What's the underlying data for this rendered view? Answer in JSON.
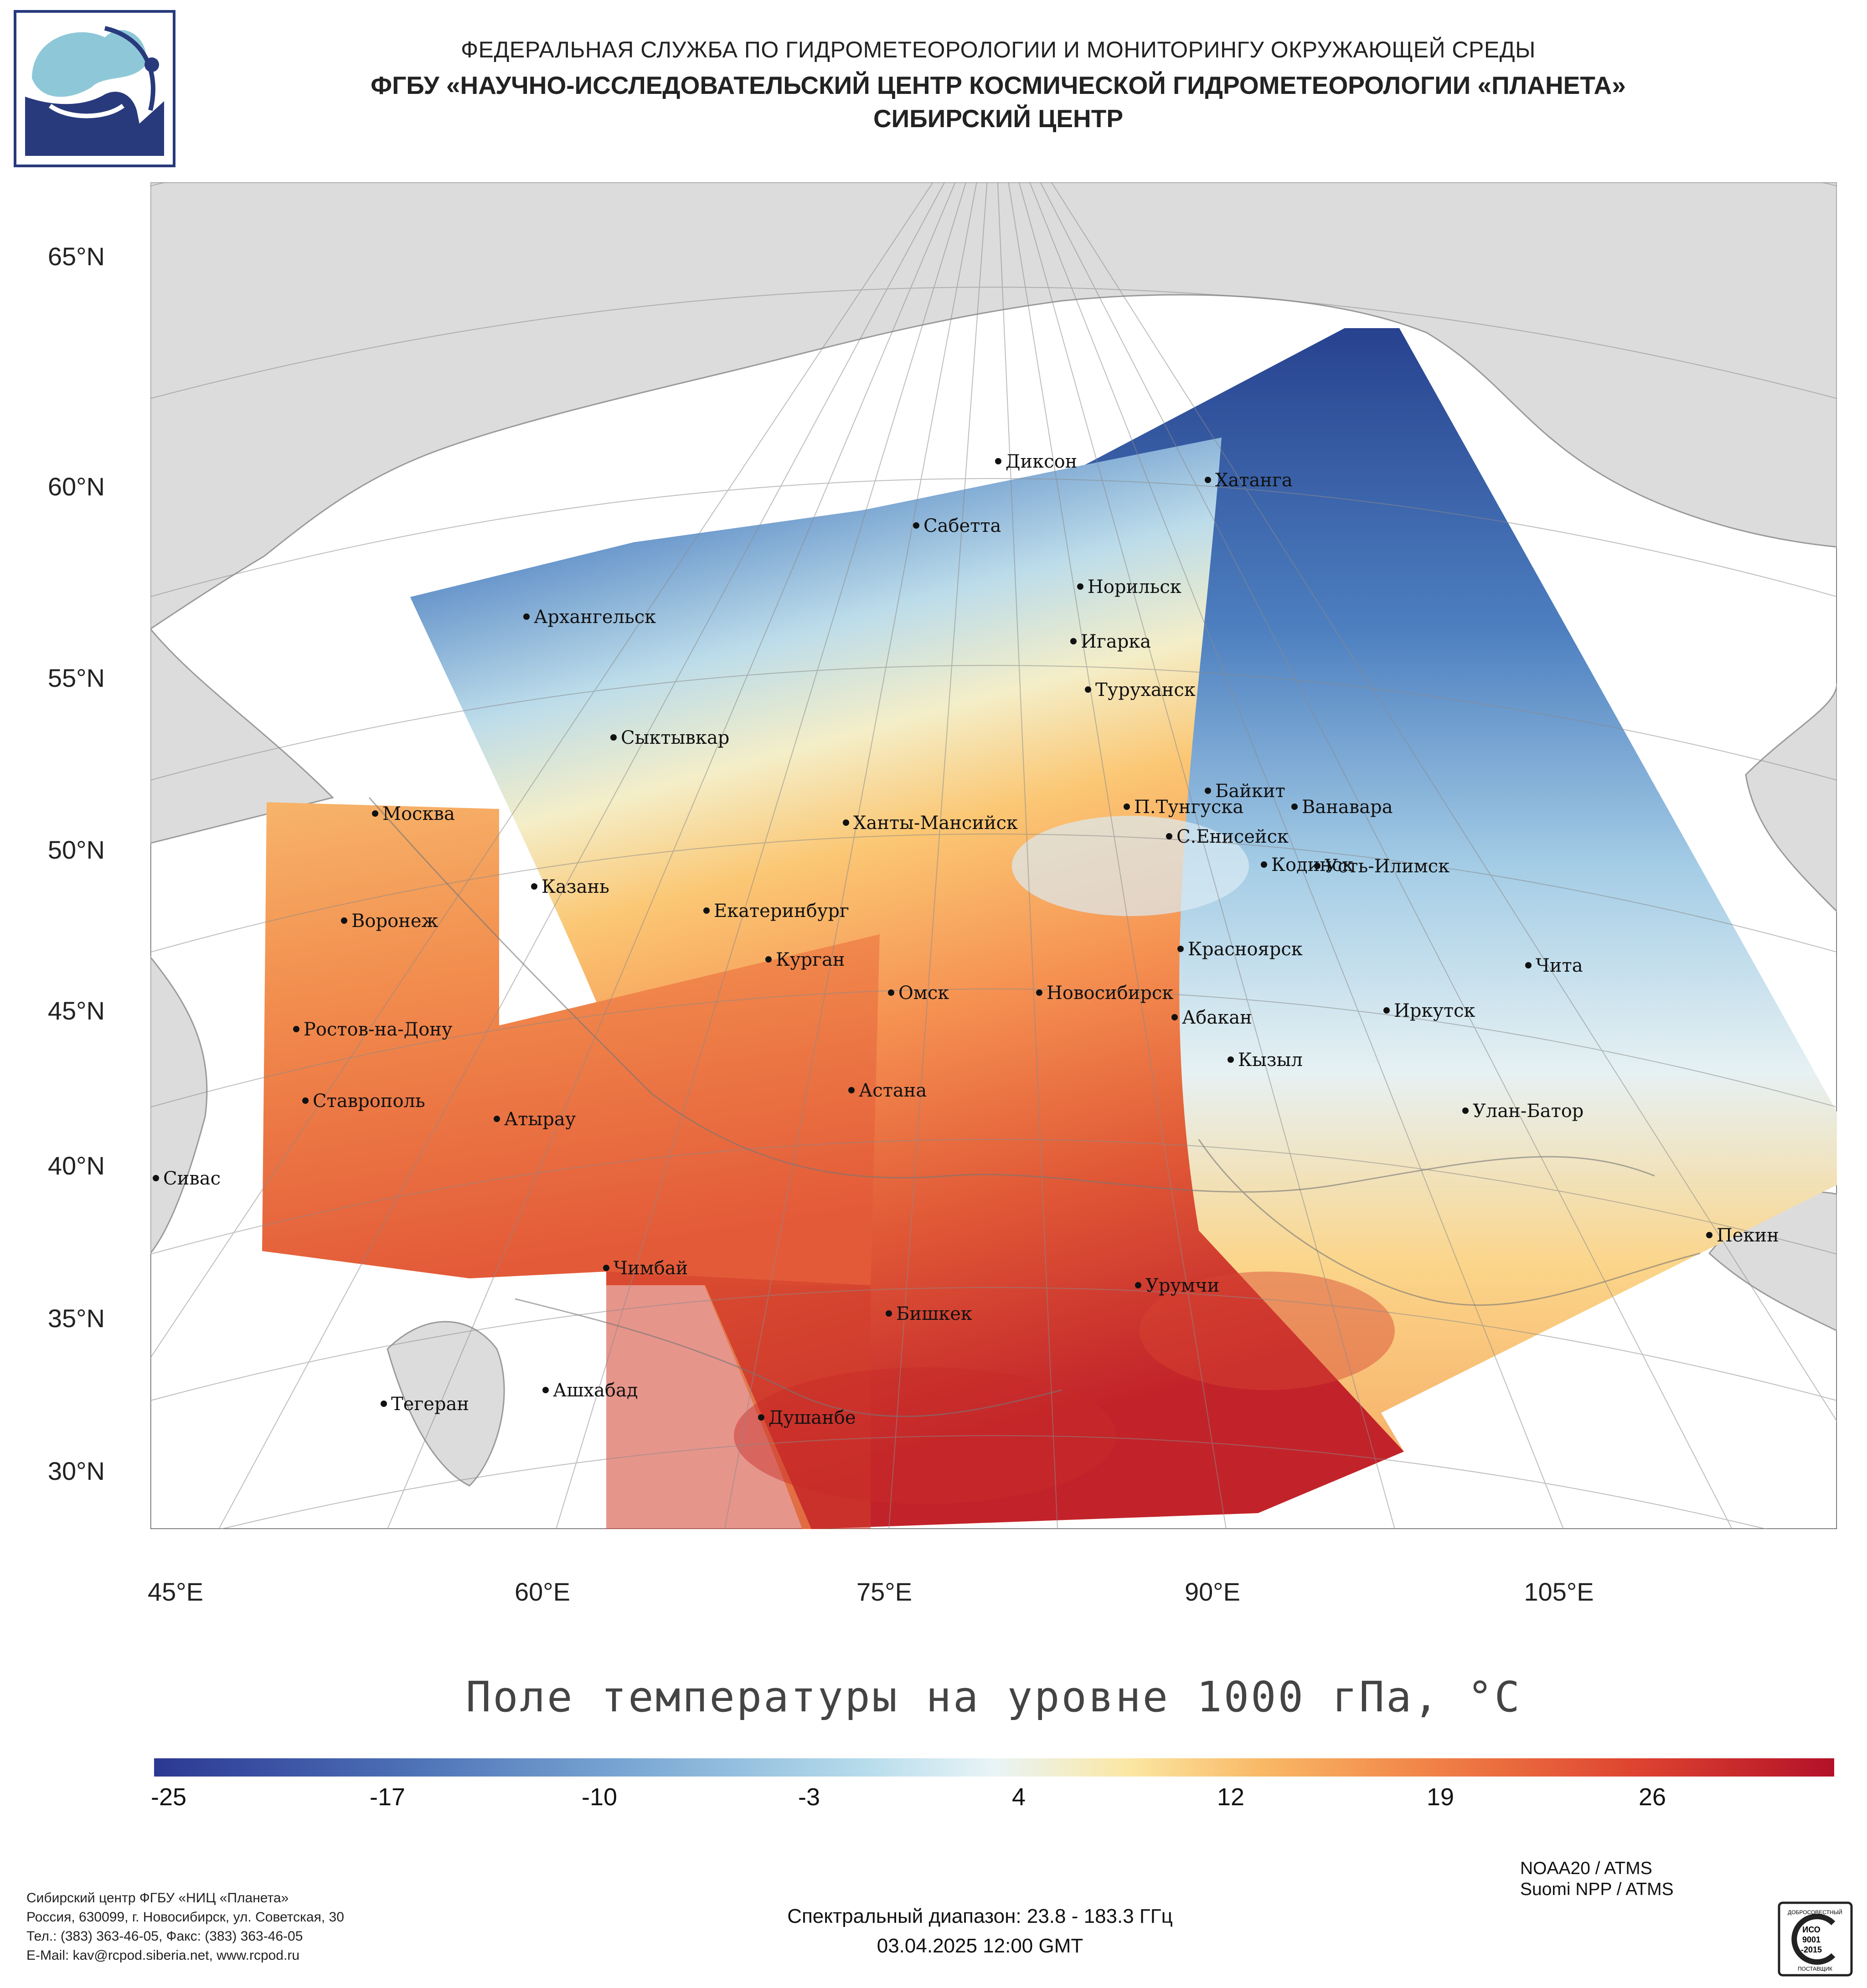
{
  "header": {
    "line1": "ФЕДЕРАЛЬНАЯ СЛУЖБА ПО ГИДРОМЕТЕОРОЛОГИИ И МОНИТОРИНГУ ОКРУЖАЮЩЕЙ СРЕДЫ",
    "line2": "ФГБУ «НАУЧНО-ИССЛЕДОВАТЕЛЬСКИЙ ЦЕНТР КОСМИЧЕСКОЙ ГИДРОМЕТЕОРОЛОГИИ «ПЛАНЕТА»",
    "line3": "СИБИРСКИЙ ЦЕНТР"
  },
  "map": {
    "lat_ticks": [
      "65°N",
      "60°N",
      "55°N",
      "50°N",
      "45°N",
      "40°N",
      "35°N",
      "30°N"
    ],
    "lon_ticks": [
      "45°E",
      "60°E",
      "75°E",
      "90°E",
      "105°E"
    ],
    "cities": [
      {
        "name": "Диксон"
      },
      {
        "name": "Хатанга"
      },
      {
        "name": "Сабетта"
      },
      {
        "name": "Норильск"
      },
      {
        "name": "Архангельск"
      },
      {
        "name": "Игарка"
      },
      {
        "name": "Туруханск"
      },
      {
        "name": "Сыктывкар"
      },
      {
        "name": "Байкит"
      },
      {
        "name": "Москва"
      },
      {
        "name": "П.Тунгуска"
      },
      {
        "name": "Ванавара"
      },
      {
        "name": "Ханты-Мансийск"
      },
      {
        "name": "С.Енисейск"
      },
      {
        "name": "Кодинск"
      },
      {
        "name": "Усть-Илимск"
      },
      {
        "name": "Казань"
      },
      {
        "name": "Воронеж"
      },
      {
        "name": "Екатеринбург"
      },
      {
        "name": "Красноярск"
      },
      {
        "name": "Курган"
      },
      {
        "name": "Чита"
      },
      {
        "name": "Омск"
      },
      {
        "name": "Новосибирск"
      },
      {
        "name": "Иркутск"
      },
      {
        "name": "Абакан"
      },
      {
        "name": "Ростов-на-Дону"
      },
      {
        "name": "Кызыл"
      },
      {
        "name": "Ставрополь"
      },
      {
        "name": "Астана"
      },
      {
        "name": "Улан-Батор"
      },
      {
        "name": "Атырау"
      },
      {
        "name": "Сивас"
      },
      {
        "name": "Пекин"
      },
      {
        "name": "Чимбай"
      },
      {
        "name": "Урумчи"
      },
      {
        "name": "Бишкек"
      },
      {
        "name": "Ашхабад"
      },
      {
        "name": "Тегеран"
      },
      {
        "name": "Душанбе"
      }
    ]
  },
  "title": "Поле температуры на уровне 1000 гПа, °C",
  "colorbar": {
    "labels": [
      "-25",
      "-17",
      "-10",
      "-3",
      "4",
      "12",
      "19",
      "26"
    ],
    "colors": {
      "cold": "#2c3893",
      "neutral": "#e9f4f7",
      "warm": "#b31128"
    }
  },
  "footer": {
    "org_lines": [
      "Сибирский центр ФГБУ «НИЦ «Планета»",
      "Россия, 630099, г. Новосибирск, ул. Советская, 30",
      "Тел.: (383) 363-46-05, Факс: (383) 363-46-05",
      "E-Mail: kav@rcpod.siberia.net, www.rcpod.ru"
    ],
    "spectral": "Спектральный диапазон: 23.8 - 183.3 ГГц",
    "datetime": "03.04.2025 12:00 GMT",
    "sensors": [
      "NOAA20 / ATMS",
      "Suomi NPP / ATMS"
    ],
    "iso": {
      "top": "ДОБРОСОВЕСТНЫЙ",
      "l1": "ИСО",
      "l2": "9001",
      "l3": "-2015",
      "bottom": "ПОСТАВЩИК"
    }
  }
}
